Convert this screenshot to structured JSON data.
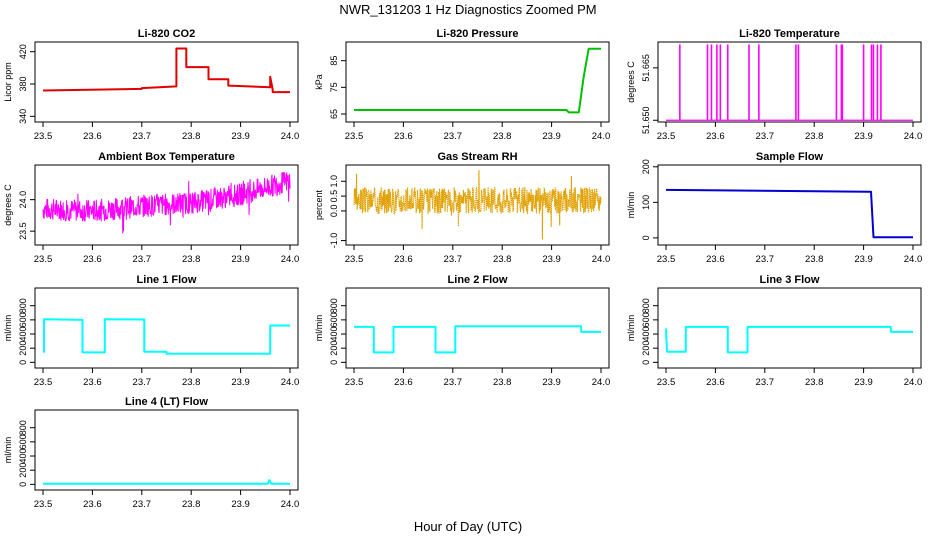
{
  "title": "NWR_131203  1 Hz Diagnostics Zoomed PM",
  "xlabel": "Hour of Day (UTC)",
  "colors": {
    "red": "#e00000",
    "green": "#00c000",
    "magenta": "#ff00ff",
    "orange": "#e0a000",
    "blue": "#0000d0",
    "cyan": "#00ffff"
  },
  "chart_data": [
    {
      "id": "co2",
      "type": "line",
      "title": "Li-820 CO2",
      "ylabel": "Licor ppm",
      "xlim": [
        23.5,
        24.0
      ],
      "xticks": [
        "23.5",
        "23.6",
        "23.7",
        "23.8",
        "23.9",
        "24.0"
      ],
      "ylim": [
        333,
        432
      ],
      "yticks": [
        "340",
        "380",
        "420"
      ],
      "yticks_at": [
        340,
        380,
        420
      ],
      "color": "red",
      "series": [
        {
          "name": "CO2",
          "x": [
            23.5,
            23.7,
            23.7,
            23.77,
            23.77,
            23.79,
            23.79,
            23.835,
            23.835,
            23.875,
            23.875,
            23.96,
            23.96,
            23.965,
            23.965,
            24.0
          ],
          "y": [
            372,
            374,
            375,
            377,
            424,
            424,
            401,
            401,
            386,
            386,
            378,
            376,
            389,
            373,
            370,
            370
          ]
        }
      ]
    },
    {
      "id": "pressure",
      "type": "line",
      "title": "Li-820 Pressure",
      "ylabel": "kPa",
      "xlim": [
        23.5,
        24.0
      ],
      "xticks": [
        "23.5",
        "23.6",
        "23.7",
        "23.8",
        "23.9",
        "24.0"
      ],
      "ylim": [
        62,
        92
      ],
      "yticks": [
        "65",
        "75",
        "85"
      ],
      "yticks_at": [
        65,
        75,
        85
      ],
      "color": "green",
      "series": [
        {
          "name": "Pressure",
          "x": [
            23.5,
            23.8,
            23.93,
            23.935,
            23.955,
            23.965,
            23.975,
            24.0
          ],
          "y": [
            66.5,
            66.5,
            66.5,
            65.6,
            65.6,
            79,
            89.5,
            89.5
          ]
        }
      ]
    },
    {
      "id": "temp820",
      "type": "line",
      "title": "Li-820 Temperature",
      "ylabel": "degrees C",
      "xlim": [
        23.5,
        24.0
      ],
      "xticks": [
        "23.5",
        "23.6",
        "23.7",
        "23.8",
        "23.9",
        "24.0"
      ],
      "ylim": [
        51.6495,
        51.6724
      ],
      "yticks": [
        "51.650",
        "51.665"
      ],
      "yticks_at": [
        51.65,
        51.665
      ],
      "color": "magenta",
      "baseline": 51.65,
      "spike_top": 51.6717,
      "spikes": [
        23.528,
        23.584,
        23.592,
        23.603,
        23.61,
        23.625,
        23.668,
        23.688,
        23.763,
        23.768,
        23.845,
        23.855,
        23.857,
        23.9,
        23.916,
        23.92,
        23.928,
        23.935
      ]
    },
    {
      "id": "ambient",
      "type": "line",
      "title": "Ambient Box Temperature",
      "ylabel": "degrees C",
      "xlim": [
        23.5,
        24.0
      ],
      "xticks": [
        "23.5",
        "23.6",
        "23.7",
        "23.8",
        "23.9",
        "24.0"
      ],
      "ylim": [
        23.28,
        24.55
      ],
      "yticks": [
        "23.5",
        "24.0"
      ],
      "yticks_at": [
        23.5,
        24.0
      ],
      "color": "magenta",
      "series": [
        {
          "name": "Ambient",
          "x": [
            23.5,
            23.6,
            23.7,
            23.8,
            23.9,
            24.0
          ],
          "y": [
            23.85,
            23.82,
            23.9,
            23.95,
            24.08,
            24.3
          ]
        }
      ],
      "noise": 0.18,
      "noise_seed": 7
    },
    {
      "id": "rh",
      "type": "scatter",
      "title": "Gas Stream RH",
      "ylabel": "percent",
      "xlim": [
        23.5,
        24.0
      ],
      "xticks": [
        "23.5",
        "23.6",
        "23.7",
        "23.8",
        "23.9",
        "24.0"
      ],
      "ylim": [
        -1.15,
        1.55
      ],
      "yticks": [
        "-1.0",
        "0.0",
        "0.5",
        "1.0"
      ],
      "yticks_at": [
        -1.0,
        0.0,
        0.5,
        1.0
      ],
      "color": "orange",
      "series": [
        {
          "name": "RH",
          "x": [
            23.5,
            24.0
          ],
          "y": [
            0.35,
            0.35
          ]
        }
      ],
      "noise": 0.45,
      "noise_seed": 3
    },
    {
      "id": "sample",
      "type": "line",
      "title": "Sample Flow",
      "ylabel": "ml/min",
      "xlim": [
        23.5,
        24.0
      ],
      "xticks": [
        "23.5",
        "23.6",
        "23.7",
        "23.8",
        "23.9",
        "24.0"
      ],
      "ylim": [
        -20,
        205
      ],
      "yticks": [
        "0",
        "100",
        "200"
      ],
      "yticks_at": [
        0,
        100,
        200
      ],
      "color": "blue",
      "series": [
        {
          "name": "Sample",
          "x": [
            23.5,
            23.91,
            23.915,
            23.92,
            24.0
          ],
          "y": [
            135,
            130,
            130,
            2,
            2
          ]
        }
      ]
    },
    {
      "id": "line1",
      "type": "line",
      "title": "Line 1 Flow",
      "ylabel": "ml/min",
      "xlim": [
        23.5,
        24.0
      ],
      "xticks": [
        "23.5",
        "23.6",
        "23.7",
        "23.8",
        "23.9",
        "24.0"
      ],
      "ylim": [
        -80,
        1050
      ],
      "yticks": [
        "0",
        "200",
        "400",
        "600",
        "800"
      ],
      "yticks_at": [
        0,
        200,
        400,
        600,
        800
      ],
      "color": "cyan",
      "series": [
        {
          "name": "Line 1",
          "x": [
            23.5,
            23.502,
            23.502,
            23.58,
            23.58,
            23.625,
            23.625,
            23.705,
            23.705,
            23.75,
            23.75,
            23.96,
            23.96,
            24.0
          ],
          "y": [
            150,
            150,
            610,
            600,
            140,
            140,
            610,
            605,
            150,
            150,
            120,
            120,
            520,
            520
          ]
        }
      ]
    },
    {
      "id": "line2",
      "type": "line",
      "title": "Line 2 Flow",
      "ylabel": "ml/min",
      "xlim": [
        23.5,
        24.0
      ],
      "xticks": [
        "23.5",
        "23.6",
        "23.7",
        "23.8",
        "23.9",
        "24.0"
      ],
      "ylim": [
        -80,
        1050
      ],
      "yticks": [
        "0",
        "200",
        "400",
        "600",
        "800"
      ],
      "yticks_at": [
        0,
        200,
        400,
        600,
        800
      ],
      "color": "cyan",
      "series": [
        {
          "name": "Line 2",
          "x": [
            23.5,
            23.54,
            23.54,
            23.58,
            23.58,
            23.665,
            23.665,
            23.705,
            23.705,
            23.96,
            23.96,
            24.0
          ],
          "y": [
            500,
            500,
            140,
            140,
            500,
            500,
            140,
            140,
            510,
            510,
            430,
            430
          ]
        }
      ]
    },
    {
      "id": "line3",
      "type": "line",
      "title": "Line 3 Flow",
      "ylabel": "ml/min",
      "xlim": [
        23.5,
        24.0
      ],
      "xticks": [
        "23.5",
        "23.6",
        "23.7",
        "23.8",
        "23.9",
        "24.0"
      ],
      "ylim": [
        -80,
        1050
      ],
      "yticks": [
        "0",
        "200",
        "400",
        "600",
        "800"
      ],
      "yticks_at": [
        0,
        200,
        400,
        600,
        800
      ],
      "color": "cyan",
      "series": [
        {
          "name": "Line 3",
          "x": [
            23.5,
            23.502,
            23.502,
            23.54,
            23.54,
            23.625,
            23.625,
            23.665,
            23.665,
            23.955,
            23.955,
            24.0
          ],
          "y": [
            480,
            150,
            150,
            150,
            500,
            500,
            140,
            140,
            500,
            500,
            430,
            430
          ]
        }
      ]
    },
    {
      "id": "line4",
      "type": "line",
      "title": "Line 4 (LT) Flow",
      "ylabel": "ml/min",
      "xlim": [
        23.5,
        24.0
      ],
      "xticks": [
        "23.5",
        "23.6",
        "23.7",
        "23.8",
        "23.9",
        "24.0"
      ],
      "ylim": [
        -80,
        1050
      ],
      "yticks": [
        "0",
        "200",
        "400",
        "600",
        "800"
      ],
      "yticks_at": [
        0,
        200,
        400,
        600,
        800
      ],
      "color": "cyan",
      "series": [
        {
          "name": "Line 4",
          "x": [
            23.5,
            23.955,
            23.958,
            23.962,
            24.0
          ],
          "y": [
            8,
            8,
            60,
            8,
            8
          ]
        }
      ]
    }
  ]
}
